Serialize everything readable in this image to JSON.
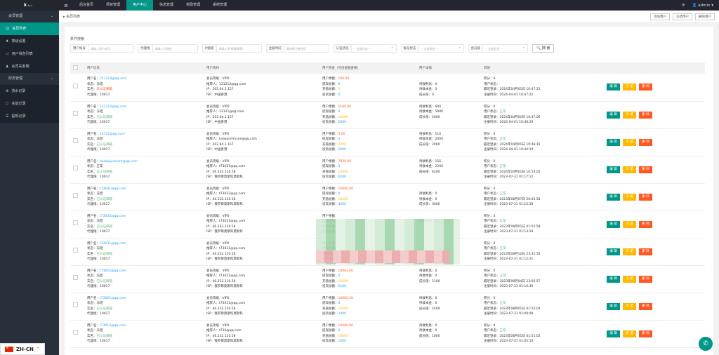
{
  "app": {
    "logo": "k",
    "version": "ℹ1.3",
    "user": "admin"
  },
  "nav": [
    "后台首页",
    "项目管理",
    "用户中心",
    "信息管理",
    "奖励管理",
    "系统管理"
  ],
  "sidebar": {
    "group1": "会员管理",
    "items1": [
      "会员列表",
      "等级设置",
      "用户钱包列表",
      "会员关系网"
    ],
    "group2": "财务管理",
    "items2": [
      "流水记录",
      "充值记录",
      "提现记录"
    ]
  },
  "tab": "会员列表",
  "tab_actions": [
    "添加用户",
    "冻结用户",
    "删除用户"
  ],
  "search": {
    "title": "条件搜索",
    "fields": [
      {
        "label": "用户帐号",
        "ph": "请输入用户帐号"
      },
      {
        "label": "代理线",
        "ph": "请输入代理线"
      },
      {
        "label": "IP搜索",
        "ph": "请输入IP(模糊搜索)"
      },
      {
        "label": "注册时间",
        "ph": "请选择注册时间"
      },
      {
        "label": "认证状态",
        "ph": "全部状态"
      },
      {
        "label": "账号状态",
        "ph": "全部状态"
      },
      {
        "label": "会员级",
        "ph": "全部会员"
      }
    ],
    "button": "搜 索"
  },
  "table": {
    "headers": [
      "用户信息",
      "用户资料",
      "用户资金（点击金额查看）",
      "用户详情",
      "其他"
    ],
    "rows": [
      {
        "email": "211214@qq.com",
        "state": "冻结",
        "auth": "未认证邮箱",
        "agent": "10017",
        "level": "VIP0",
        "ref": "121212@qq.com",
        "ip": "202.64.1.157",
        "isp": "中国香港",
        "bal": "100.00",
        "wd": "0",
        "rc": "0",
        "inv": "0",
        "d1": "",
        "d2": "待收利息：0",
        "d3": "待收本金：0",
        "d4": "成长值：0",
        "pts": "0",
        "st": "",
        "last": "2024年04月01日 10:47:22",
        "reg": "2024-04-01 10:47:22"
      },
      {
        "email": "121212@qq.com",
        "state": "冻结",
        "auth": "已认证邮箱",
        "agent": "10017",
        "level": "VIP0",
        "ref": "12121@qq.com",
        "ip": "202.64.1.157",
        "isp": "中国香港",
        "bal": "5100.00",
        "wd": "0",
        "rc": "10000",
        "inv": "5000",
        "d1": "待收利息：600",
        "d2": "待收本金：5000",
        "d3": "成长值：5000",
        "d4": "",
        "pts": "0",
        "st": "正常",
        "last": "2024年04月01日 10:47:09",
        "reg": "2024-04-01 10:46:29"
      },
      {
        "email": "12121@qq.com",
        "state": "冻结",
        "auth": "已认证邮箱",
        "agent": "10017",
        "level": "VIP0",
        "ref": "haiwaiyimcom@qq.com",
        "ip": "202.64.1.157",
        "isp": "中国香港",
        "bal": "0.00",
        "wd": "0",
        "rc": "2000",
        "inv": "2000",
        "d1": "待收利息：110",
        "d2": "待收本金：2000",
        "d3": "成长值：2000",
        "d4": "",
        "pts": "0",
        "st": "正常",
        "last": "2024年04月01日 10:46:16",
        "reg": "2024-04-01 10:44:19"
      },
      {
        "email": "haiwaiyimcom@qq.com",
        "state": "正常",
        "auth": "已认证邮箱",
        "agent": "10017",
        "level": "VIP0",
        "ref": "t73021@qq.com",
        "ip": "46.232.120.58",
        "isp": "俄罗斯莫斯科莫斯科",
        "bal": "7830.00",
        "wd": "0",
        "rc": "10000",
        "inv": "6200",
        "d1": "待收利息：155",
        "d2": "待收本金：2200",
        "d3": "成长值：6200",
        "d4": "",
        "pts": "0",
        "st": "正常",
        "last": "2024年04月01日 10:54:02",
        "reg": "2023-07-31 01:17:12"
      },
      {
        "email": "t73041@qq.com",
        "state": "冻结",
        "auth": "已认证邮箱",
        "agent": "10017",
        "level": "VIP0",
        "ref": "t73032@qq.com",
        "ip": "46.232.120.58",
        "isp": "俄罗斯莫斯科莫斯科",
        "bal": "10000.00",
        "wd": "0",
        "rc": "10000",
        "inv": "3000",
        "d1": "",
        "d2": "待收利息：0",
        "d3": "待收本金：0",
        "d4": "成长值：3000",
        "pts": "0",
        "st": "正常",
        "last": "2023年08月07日 20:05:58",
        "reg": "2023-07-31 01:15:58"
      },
      {
        "email": "t73032@qq.com",
        "state": "冻结",
        "auth": "已认证邮箱",
        "agent": "10017",
        "level": "VIP0",
        "ref": "t73021@qq.com",
        "ip": "46.232.120.58",
        "isp": "俄罗斯莫斯科莫斯科",
        "bal": "",
        "wd": "",
        "rc": "",
        "inv": "",
        "d1": "",
        "d2": "待收利息：0",
        "d3": "",
        "d4": "",
        "pts": "0",
        "st": "正常",
        "last": "2023年08月01日 01:55:58",
        "reg": "2023-07-31 01:14:10"
      },
      {
        "email": "t73031@qq.com",
        "state": "冻结",
        "auth": "已认证邮箱",
        "agent": "10017",
        "level": "VIP0",
        "ref": "t73021@qq.com",
        "ip": "46.232.120.58",
        "isp": "俄罗斯莫斯科莫斯科",
        "bal": "",
        "wd": "",
        "rc": "",
        "inv": "",
        "d1": "",
        "d2": "",
        "d3": "",
        "d4": "",
        "pts": "0",
        "st": "正常",
        "last": "2023年08月12日 23:41:54",
        "reg": "2023-07-31 01:12:21"
      },
      {
        "email": "t73022@qq.com",
        "state": "冻结",
        "auth": "已认证邮箱",
        "agent": "10017",
        "level": "VIP0",
        "ref": "t73011@qq.com",
        "ip": "46.232.120.58",
        "isp": "俄罗斯莫斯科莫斯科",
        "bal": "10063.00",
        "wd": "0",
        "rc": "10000",
        "inv": "2100",
        "d1": "待收利息：0",
        "d2": "待收本金：0",
        "d3": "成长值：2100",
        "d4": "",
        "pts": "0",
        "st": "正常",
        "last": "2023年08月04日 23:05:57",
        "reg": "2023-07-31 01:10:39"
      },
      {
        "email": "t73021@qq.com",
        "state": "冻结",
        "auth": "已认证邮箱",
        "agent": "10017",
        "level": "VIP0",
        "ref": "t73011@qq.com",
        "ip": "46.232.120.58",
        "isp": "俄罗斯莫斯科莫斯科",
        "bal": "10062.28",
        "wd": "0",
        "rc": "10000",
        "inv": "2409",
        "d1": "待收利息：0",
        "d2": "待收本金：0",
        "d3": "成长值：2409",
        "d4": "",
        "pts": "0",
        "st": "正常",
        "last": "2023年08月01日 01:52:04",
        "reg": "2023-07-31 01:09:49"
      },
      {
        "email": "t73012@qq.com",
        "state": "冻结",
        "auth": "已认证邮箱",
        "agent": "10017",
        "level": "VIP0",
        "ref": "t730@qq.com",
        "ip": "46.232.120.58",
        "isp": "俄罗斯莫斯科莫斯科",
        "bal": "10000.00",
        "wd": "0",
        "rc": "10000",
        "inv": "1000",
        "d1": "待收利息：0",
        "d2": "待收本金：0",
        "d3": "成长值：1000",
        "d4": "",
        "pts": "0",
        "st": "正常",
        "last": "2023年08月01日 01:51:02",
        "reg": "2023-07-31 01:05:10"
      }
    ]
  },
  "labels": {
    "email": "用户名：",
    "state": "状态：",
    "auth": "实名：",
    "agent": "代理线：",
    "level": "会员等级：",
    "ref": "推荐人：",
    "ip": "IP：",
    "isp": "ISP：",
    "bal": "用户余额：",
    "wd": "提现总额：",
    "rc": "充值总额：",
    "inv": "投资总额：",
    "pts": "积分：",
    "st": "用户状态：",
    "last": "最近登录：",
    "reg": "注册时间："
  },
  "actions": {
    "edit": "编 辑",
    "mod": "冻 结",
    "del": "删 除"
  },
  "lang": "ZH-CN"
}
